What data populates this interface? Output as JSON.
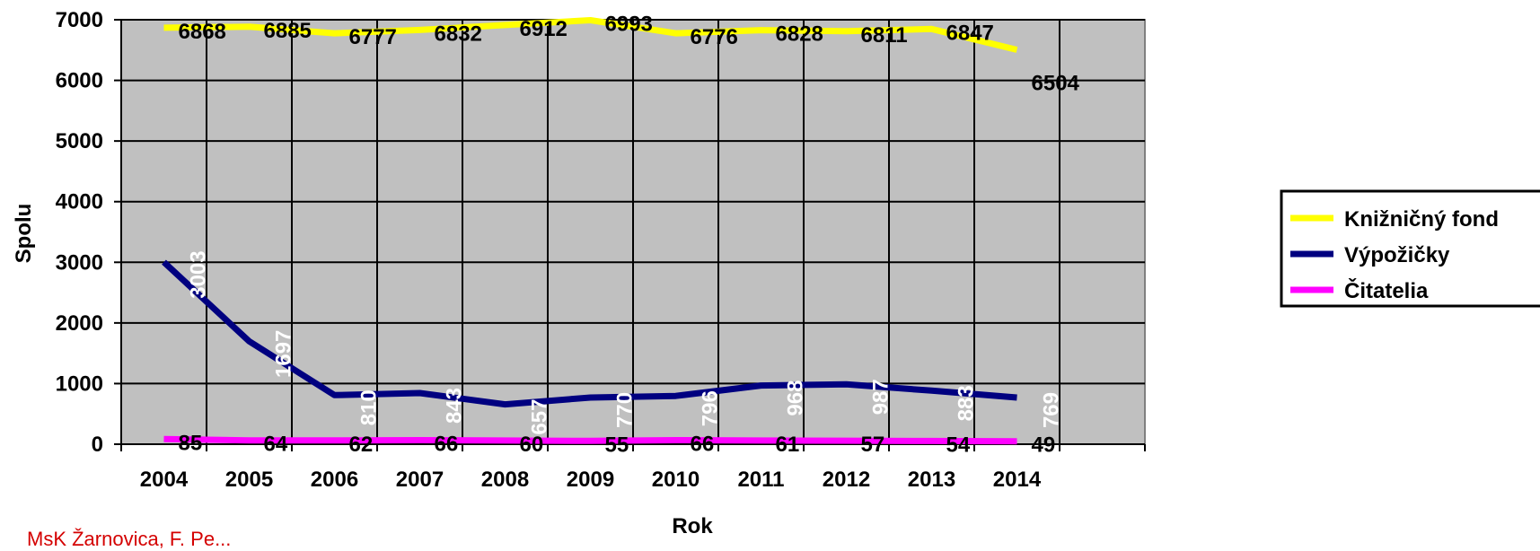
{
  "chart_data": {
    "type": "line",
    "categories": [
      "2004",
      "2005",
      "2006",
      "2007",
      "2008",
      "2009",
      "2010",
      "2011",
      "2012",
      "2013",
      "2014"
    ],
    "xlabel": "Rok",
    "ylabel": "Spolu",
    "ylim": [
      0,
      7000
    ],
    "yticks": [
      0,
      1000,
      2000,
      3000,
      4000,
      5000,
      6000,
      7000
    ],
    "grid": true,
    "plot_background": "#c0c0c0",
    "legend_position": "right",
    "series": [
      {
        "name": "Knižničný fond",
        "color": "#ffff00",
        "label_color": "#000000",
        "values": [
          6868,
          6885,
          6777,
          6832,
          6912,
          6993,
          6776,
          6828,
          6811,
          6847,
          6504
        ]
      },
      {
        "name": "Výpožičky",
        "color": "#000080",
        "label_color": "#ffffff",
        "values": [
          3003,
          1697,
          810,
          843,
          657,
          770,
          796,
          968,
          987,
          883,
          769
        ]
      },
      {
        "name": "Čitatelia",
        "color": "#ff00ff",
        "label_color": "#000000",
        "values": [
          85,
          64,
          62,
          66,
          60,
          55,
          66,
          61,
          57,
          54,
          49
        ]
      }
    ]
  },
  "footer": {
    "text": "MsK Žarnovica, F. Pe..."
  }
}
